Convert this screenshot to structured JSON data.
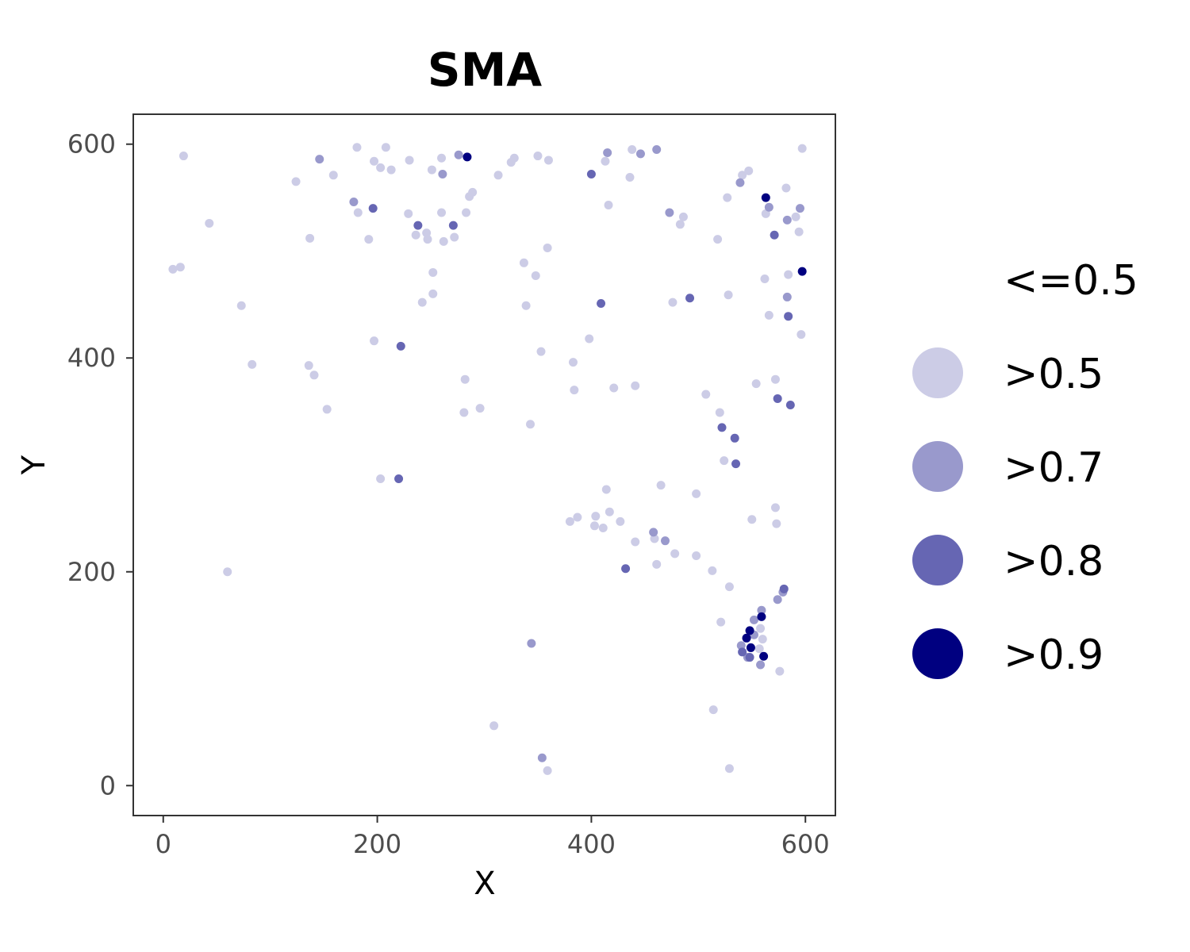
{
  "chart_data": {
    "type": "scatter",
    "title": "SMA",
    "xlabel": "X",
    "ylabel": "Y",
    "xlim": [
      -28,
      628
    ],
    "ylim": [
      -28,
      628
    ],
    "xticks": [
      0,
      200,
      400,
      600
    ],
    "yticks": [
      0,
      200,
      400,
      600
    ],
    "grid": false,
    "legend": {
      "position": "right",
      "entries": [
        {
          "label": "<=0.5",
          "color": "#ffffff"
        },
        {
          "label": ">0.5",
          "color": "#cccce6"
        },
        {
          "label": ">0.7",
          "color": "#9999cc"
        },
        {
          "label": ">0.8",
          "color": "#6666b3"
        },
        {
          "label": ">0.9",
          "color": "#000080"
        }
      ]
    },
    "series": [
      {
        "name": ">0.5",
        "color": "#cccce6",
        "points": [
          [
            19,
            589
          ],
          [
            9,
            483
          ],
          [
            16,
            485
          ],
          [
            43,
            526
          ],
          [
            73,
            449
          ],
          [
            83,
            394
          ],
          [
            60,
            200
          ],
          [
            124,
            565
          ],
          [
            137,
            512
          ],
          [
            136,
            393
          ],
          [
            141,
            384
          ],
          [
            153,
            352
          ],
          [
            159,
            571
          ],
          [
            181,
            597
          ],
          [
            182,
            536
          ],
          [
            192,
            511
          ],
          [
            197,
            416
          ],
          [
            197,
            584
          ],
          [
            203,
            578
          ],
          [
            208,
            597
          ],
          [
            213,
            576
          ],
          [
            203,
            287
          ],
          [
            230,
            585
          ],
          [
            229,
            535
          ],
          [
            236,
            515
          ],
          [
            242,
            452
          ],
          [
            246,
            517
          ],
          [
            247,
            511
          ],
          [
            251,
            576
          ],
          [
            252,
            480
          ],
          [
            252,
            460
          ],
          [
            260,
            587
          ],
          [
            260,
            536
          ],
          [
            262,
            509
          ],
          [
            272,
            513
          ],
          [
            283,
            536
          ],
          [
            286,
            551
          ],
          [
            289,
            555
          ],
          [
            281,
            349
          ],
          [
            282,
            380
          ],
          [
            296,
            353
          ],
          [
            313,
            571
          ],
          [
            325,
            583
          ],
          [
            328,
            587
          ],
          [
            337,
            489
          ],
          [
            339,
            449
          ],
          [
            343,
            338
          ],
          [
            348,
            477
          ],
          [
            350,
            589
          ],
          [
            353,
            406
          ],
          [
            359,
            503
          ],
          [
            360,
            585
          ],
          [
            309,
            56
          ],
          [
            359,
            14
          ],
          [
            380,
            247
          ],
          [
            383,
            396
          ],
          [
            384,
            370
          ],
          [
            387,
            251
          ],
          [
            398,
            418
          ],
          [
            403,
            243
          ],
          [
            404,
            252
          ],
          [
            413,
            584
          ],
          [
            411,
            241
          ],
          [
            414,
            277
          ],
          [
            416,
            543
          ],
          [
            417,
            256
          ],
          [
            421,
            372
          ],
          [
            427,
            247
          ],
          [
            436,
            569
          ],
          [
            438,
            595
          ],
          [
            441,
            374
          ],
          [
            441,
            228
          ],
          [
            459,
            231
          ],
          [
            461,
            207
          ],
          [
            465,
            281
          ],
          [
            476,
            452
          ],
          [
            478,
            217
          ],
          [
            483,
            525
          ],
          [
            486,
            532
          ],
          [
            498,
            273
          ],
          [
            498,
            215
          ],
          [
            507,
            366
          ],
          [
            513,
            201
          ],
          [
            514,
            71
          ],
          [
            518,
            511
          ],
          [
            520,
            349
          ],
          [
            521,
            153
          ],
          [
            524,
            304
          ],
          [
            527,
            550
          ],
          [
            528,
            459
          ],
          [
            529,
            186
          ],
          [
            529,
            16
          ],
          [
            541,
            571
          ],
          [
            547,
            575
          ],
          [
            550,
            249
          ],
          [
            554,
            376
          ],
          [
            557,
            128
          ],
          [
            558,
            147
          ],
          [
            560,
            137
          ],
          [
            562,
            474
          ],
          [
            563,
            535
          ],
          [
            566,
            440
          ],
          [
            572,
            260
          ],
          [
            572,
            380
          ],
          [
            573,
            245
          ],
          [
            576,
            107
          ],
          [
            582,
            559
          ],
          [
            584,
            478
          ],
          [
            591,
            532
          ],
          [
            594,
            518
          ],
          [
            596,
            422
          ],
          [
            597,
            596
          ]
        ]
      },
      {
        "name": ">0.7",
        "color": "#9999cc",
        "points": [
          [
            146,
            586
          ],
          [
            178,
            546
          ],
          [
            261,
            572
          ],
          [
            276,
            590
          ],
          [
            344,
            133
          ],
          [
            354,
            26
          ],
          [
            415,
            592
          ],
          [
            446,
            591
          ],
          [
            458,
            237
          ],
          [
            461,
            595
          ],
          [
            469,
            229
          ],
          [
            473,
            536
          ],
          [
            539,
            564
          ],
          [
            540,
            131
          ],
          [
            546,
            120
          ],
          [
            552,
            141
          ],
          [
            552,
            155
          ],
          [
            558,
            113
          ],
          [
            559,
            164
          ],
          [
            566,
            541
          ],
          [
            574,
            174
          ],
          [
            579,
            181
          ],
          [
            583,
            529
          ],
          [
            583,
            457
          ],
          [
            595,
            540
          ]
        ]
      },
      {
        "name": ">0.8",
        "color": "#6666b3",
        "points": [
          [
            196,
            540
          ],
          [
            222,
            411
          ],
          [
            220,
            287
          ],
          [
            238,
            524
          ],
          [
            271,
            524
          ],
          [
            400,
            572
          ],
          [
            409,
            451
          ],
          [
            432,
            203
          ],
          [
            492,
            456
          ],
          [
            522,
            335
          ],
          [
            534,
            325
          ],
          [
            535,
            301
          ],
          [
            541,
            125
          ],
          [
            548,
            120
          ],
          [
            571,
            515
          ],
          [
            574,
            362
          ],
          [
            580,
            184
          ],
          [
            584,
            439
          ],
          [
            586,
            356
          ]
        ]
      },
      {
        "name": ">0.9",
        "color": "#000080",
        "points": [
          [
            284,
            588
          ],
          [
            545,
            138
          ],
          [
            548,
            145
          ],
          [
            549,
            129
          ],
          [
            559,
            158
          ],
          [
            561,
            121
          ],
          [
            563,
            550
          ],
          [
            597,
            481
          ]
        ]
      }
    ]
  }
}
